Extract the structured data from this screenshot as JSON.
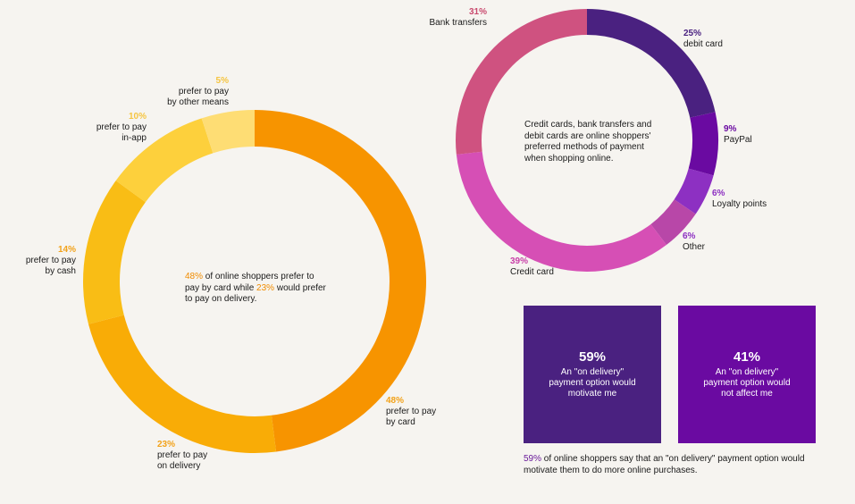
{
  "chart_data": [
    {
      "type": "pie",
      "variant": "donut",
      "slices": [
        {
          "pct": "48%",
          "value": 48,
          "label_lines": [
            "prefer to pay",
            "by card"
          ],
          "color": "#f79400"
        },
        {
          "pct": "23%",
          "value": 23,
          "label_lines": [
            "prefer to pay",
            "on delivery"
          ],
          "color": "#f9ac06"
        },
        {
          "pct": "14%",
          "value": 14,
          "label_lines": [
            "prefer to pay",
            "by cash"
          ],
          "color": "#f9bd15"
        },
        {
          "pct": "10%",
          "value": 10,
          "label_lines": [
            "prefer to pay",
            "in-app"
          ],
          "color": "#fdd03c"
        },
        {
          "pct": "5%",
          "value": 5,
          "label_lines": [
            "prefer to pay",
            "by other means"
          ],
          "color": "#fedd74"
        }
      ],
      "center_note": {
        "hl1": "48%",
        "t1": " of online shoppers prefer to pay by card while ",
        "hl2": "23%",
        "t2": " would prefer to pay on delivery."
      },
      "pct_color": "#f2a21a"
    },
    {
      "type": "pie",
      "variant": "donut",
      "slices": [
        {
          "pct": "25%",
          "value": 25,
          "label_lines": [
            "debit card"
          ],
          "color": "#4a2180"
        },
        {
          "pct": "9%",
          "value": 9,
          "label_lines": [
            "PayPal"
          ],
          "color": "#6a0aa1"
        },
        {
          "pct": "6%",
          "value": 6,
          "label_lines": [
            "Loyalty points"
          ],
          "color": "#8d30c2"
        },
        {
          "pct": "6%",
          "value": 6,
          "label_lines": [
            "Other"
          ],
          "color": "#b847a8"
        },
        {
          "pct": "39%",
          "value": 39,
          "label_lines": [
            "Credit card"
          ],
          "color": "#d64fb5"
        },
        {
          "pct": "31%",
          "value": 31,
          "label_lines": [
            "Bank transfers"
          ],
          "color": "#cf5280"
        }
      ],
      "center_note": "Credit cards, bank transfers and debit cards are online shoppers' preferred methods of payment when shopping online.",
      "pct_color": "#6a1b9a"
    }
  ],
  "boxes": [
    {
      "big": "59%",
      "text": "An \"on delivery\" payment option would motivate me",
      "color": "#4a2180"
    },
    {
      "big": "41%",
      "text": "An \"on delivery\" payment option would not affect me",
      "color": "#6a0aa1"
    }
  ],
  "footnote": {
    "hl": "59%",
    "text": " of online shoppers say that an \"on delivery\" payment option would motivate them to do more online purchases."
  }
}
